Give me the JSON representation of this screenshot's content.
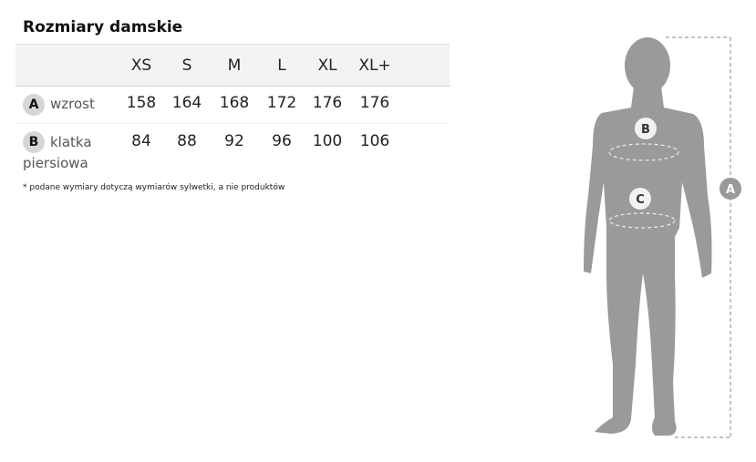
{
  "title": "Rozmiary damskie",
  "sizes": [
    "XS",
    "S",
    "M",
    "L",
    "XL",
    "XL+"
  ],
  "rows": [
    {
      "badge": "A",
      "label": "wzrost",
      "label2": "",
      "values": [
        "158",
        "164",
        "168",
        "172",
        "176",
        "176"
      ]
    },
    {
      "badge": "B",
      "label": "klatka",
      "label2": "piersiowa",
      "values": [
        "84",
        "88",
        "92",
        "96",
        "100",
        "106"
      ]
    }
  ],
  "note": "* podane wymiary dotyczą wymiarów sylwetki, a nie produktów",
  "figure": {
    "markers": [
      "A",
      "B",
      "C"
    ],
    "color": "#9a9a9a"
  }
}
